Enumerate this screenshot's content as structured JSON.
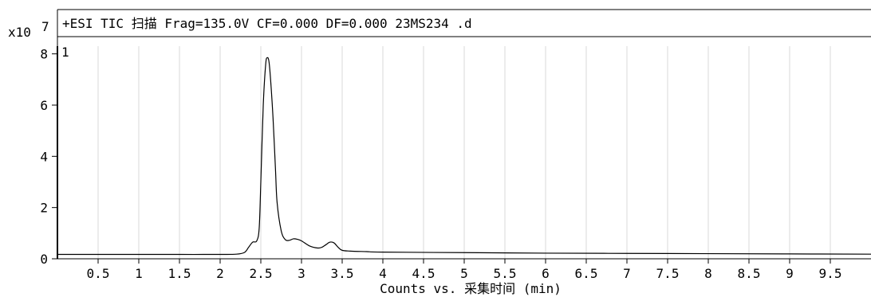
{
  "chart_data": {
    "type": "line",
    "title": "+ESI TIC 扫描 Frag=135.0V CF=0.000 DF=0.000 23MS234 .d",
    "y_multiplier": "x10",
    "y_exponent": "7",
    "panel_index": "1",
    "xlabel": "Counts vs. 采集时间 (min)",
    "ylabel": "",
    "xlim": [
      0,
      10
    ],
    "ylim": [
      0,
      8.3
    ],
    "x_ticks": [
      0.5,
      1,
      1.5,
      2,
      2.5,
      3,
      3.5,
      4,
      4.5,
      5,
      5.5,
      6,
      6.5,
      7,
      7.5,
      8,
      8.5,
      9,
      9.5
    ],
    "x_tick_labels": [
      "0.5",
      "1",
      "1.5",
      "2",
      "2.5",
      "3",
      "3.5",
      "4",
      "4.5",
      "5",
      "5.5",
      "6",
      "6.5",
      "7",
      "7.5",
      "8",
      "8.5",
      "9",
      "9.5"
    ],
    "y_ticks": [
      0,
      2,
      4,
      6,
      8
    ],
    "y_tick_labels": [
      "0",
      "2",
      "4",
      "6",
      "8"
    ],
    "grid": true,
    "series": [
      {
        "x": [
          0,
          0.5,
          1,
          1.5,
          2,
          2.2,
          2.3,
          2.35,
          2.4,
          2.45,
          2.48,
          2.5,
          2.53,
          2.56,
          2.58,
          2.6,
          2.62,
          2.65,
          2.68,
          2.7,
          2.75,
          2.8,
          2.85,
          2.9,
          2.95,
          3.0,
          3.1,
          3.2,
          3.25,
          3.3,
          3.35,
          3.4,
          3.45,
          3.5,
          3.6,
          3.8,
          4.0,
          5.0,
          6.0,
          7.0,
          8.0,
          9.0,
          10.0
        ],
        "y": [
          0.17,
          0.17,
          0.17,
          0.17,
          0.17,
          0.18,
          0.25,
          0.45,
          0.65,
          0.7,
          1.2,
          3.0,
          6.0,
          7.6,
          7.85,
          7.7,
          7.0,
          5.5,
          3.5,
          2.2,
          1.1,
          0.75,
          0.72,
          0.78,
          0.76,
          0.7,
          0.5,
          0.42,
          0.45,
          0.55,
          0.65,
          0.62,
          0.45,
          0.33,
          0.3,
          0.28,
          0.26,
          0.24,
          0.22,
          0.21,
          0.2,
          0.19,
          0.18
        ]
      }
    ]
  }
}
